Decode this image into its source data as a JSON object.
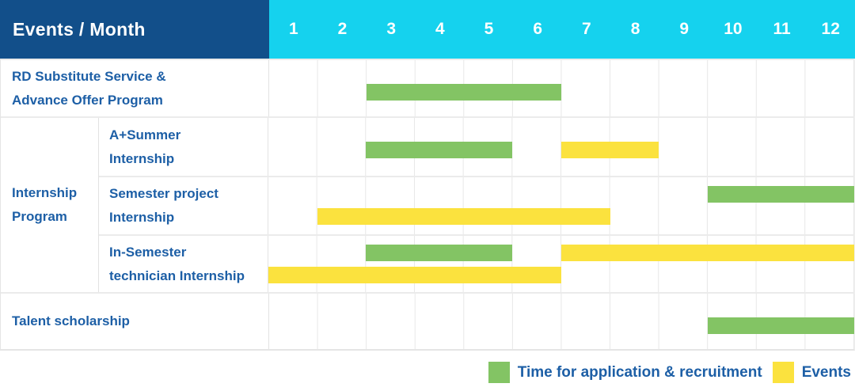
{
  "header": {
    "title": "Events / Month"
  },
  "colors": {
    "header_bg": "#124F8A",
    "months_bg": "#15D2EE",
    "label_text": "#1D5FA6",
    "grid_line": "#e7e7e7",
    "bar_green": "#83C464",
    "bar_yellow": "#FBE23E"
  },
  "legend": {
    "items": [
      {
        "label": "Time for application & recruitment",
        "color": "#83C464"
      },
      {
        "label": "Events",
        "color": "#FBE23E"
      }
    ]
  },
  "chart_data": {
    "type": "table",
    "subtype": "gantt-schedule",
    "title": "Events / Month",
    "x_axis": {
      "label": "Month",
      "range": [
        1,
        12
      ]
    },
    "months": [
      "1",
      "2",
      "3",
      "4",
      "5",
      "6",
      "7",
      "8",
      "9",
      "10",
      "11",
      "12"
    ],
    "groups": [
      {
        "label": "Internship\nProgram",
        "row_indexes": [
          1,
          2,
          3
        ]
      }
    ],
    "series": [
      {
        "name": "Time for application & recruitment",
        "color": "#83C464"
      },
      {
        "name": "Events",
        "color": "#FBE23E"
      }
    ],
    "rows": [
      {
        "label": "RD Substitute Service &\nAdvance Offer Program",
        "group": null,
        "bars": [
          {
            "series": 0,
            "start_month": 3,
            "end_month": 6,
            "lane": "single"
          }
        ]
      },
      {
        "label": "A+Summer\nInternship",
        "group": 0,
        "bars": [
          {
            "series": 0,
            "start_month": 3,
            "end_month": 5,
            "lane": "single"
          },
          {
            "series": 1,
            "start_month": 7,
            "end_month": 8,
            "lane": "single"
          }
        ]
      },
      {
        "label": "Semester project\nInternship",
        "group": 0,
        "bars": [
          {
            "series": 0,
            "start_month": 10,
            "end_month": 12,
            "lane": "top"
          },
          {
            "series": 1,
            "start_month": 2,
            "end_month": 7,
            "lane": "bottom"
          }
        ]
      },
      {
        "label": "In-Semester\ntechnician Internship",
        "group": 0,
        "bars": [
          {
            "series": 0,
            "start_month": 3,
            "end_month": 5,
            "lane": "top"
          },
          {
            "series": 1,
            "start_month": 7,
            "end_month": 12,
            "lane": "top"
          },
          {
            "series": 1,
            "start_month": 1,
            "end_month": 6,
            "lane": "bottom"
          }
        ]
      },
      {
        "label": "Talent scholarship",
        "group": null,
        "bars": [
          {
            "series": 0,
            "start_month": 10,
            "end_month": 12,
            "lane": "single"
          }
        ]
      }
    ]
  }
}
